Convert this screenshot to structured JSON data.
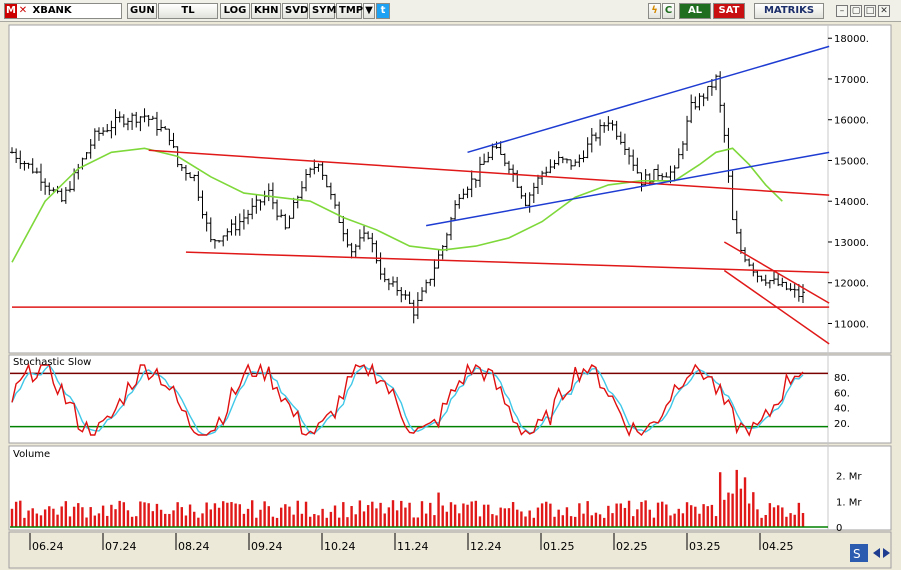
{
  "toolbar": {
    "symbol": "XBANK",
    "period": "GUN",
    "currency": "TL",
    "buttons": [
      "LOG",
      "KHN",
      "SVD",
      "SYM",
      "TMP"
    ],
    "buy_label": "AL",
    "sell_label": "SAT",
    "brand": "MATRIKS",
    "colors": {
      "buy": "#1f6e1f",
      "sell": "#c81010",
      "brand": "#1c2f6b"
    },
    "icons": [
      "lightning-icon",
      "refresh-icon",
      "twitter-icon",
      "dropdown-arrow-icon"
    ]
  },
  "stochastic": {
    "title": "Stochastic Slow",
    "ticks": [
      20,
      40,
      60,
      80
    ],
    "tick_labels": [
      "20.",
      "40.",
      "60.",
      "80."
    ],
    "overbought": 85,
    "oversold": 15,
    "colors": {
      "k": "#e01010",
      "d": "#40c8e8",
      "overbought": "#7a0000",
      "oversold": "#008000"
    }
  },
  "volume": {
    "title": "Volume",
    "tick_labels": [
      "0",
      "1. Mr",
      "2. Mr"
    ],
    "ticks": [
      0,
      1,
      2
    ],
    "color": "#e01818",
    "unit": "Mr"
  },
  "chart_data": {
    "type": "line",
    "price_axis": {
      "min": 10300,
      "max": 18300,
      "ticks": [
        11000,
        12000,
        13000,
        14000,
        15000,
        16000,
        17000,
        18000
      ],
      "tick_labels": [
        "11000.",
        "12000.",
        "13000.",
        "14000.",
        "15000.",
        "16000.",
        "17000.",
        "18000."
      ]
    },
    "x_tick_labels": [
      "06.24",
      "07.24",
      "08.24",
      "09.24",
      "10.24",
      "11.24",
      "12.24",
      "01.25",
      "02.25",
      "03.25",
      "04.25"
    ],
    "price_path": [
      [
        0,
        15200
      ],
      [
        6,
        14700
      ],
      [
        12,
        14000
      ],
      [
        20,
        15600
      ],
      [
        26,
        16000
      ],
      [
        32,
        16100
      ],
      [
        38,
        15600
      ],
      [
        40,
        14900
      ],
      [
        44,
        14600
      ],
      [
        48,
        13000
      ],
      [
        54,
        13400
      ],
      [
        58,
        13800
      ],
      [
        62,
        14200
      ],
      [
        66,
        13300
      ],
      [
        70,
        14400
      ],
      [
        74,
        15000
      ],
      [
        78,
        13800
      ],
      [
        82,
        12800
      ],
      [
        86,
        13200
      ],
      [
        90,
        12000
      ],
      [
        94,
        11800
      ],
      [
        97,
        11300
      ],
      [
        100,
        11900
      ],
      [
        104,
        12900
      ],
      [
        108,
        14200
      ],
      [
        112,
        14600
      ],
      [
        116,
        15300
      ],
      [
        120,
        14900
      ],
      [
        124,
        14000
      ],
      [
        128,
        14700
      ],
      [
        132,
        15000
      ],
      [
        136,
        14900
      ],
      [
        140,
        15500
      ],
      [
        144,
        16000
      ],
      [
        148,
        15400
      ],
      [
        152,
        14500
      ],
      [
        156,
        14700
      ],
      [
        160,
        14700
      ],
      [
        164,
        16300
      ],
      [
        168,
        16700
      ],
      [
        170,
        17000
      ],
      [
        172,
        15600
      ],
      [
        174,
        13500
      ],
      [
        176,
        12800
      ],
      [
        180,
        12200
      ],
      [
        184,
        12000
      ],
      [
        188,
        11800
      ],
      [
        190,
        11700
      ]
    ],
    "ma_path": [
      [
        0,
        12500
      ],
      [
        8,
        14000
      ],
      [
        16,
        14800
      ],
      [
        24,
        15200
      ],
      [
        32,
        15300
      ],
      [
        40,
        15100
      ],
      [
        48,
        14600
      ],
      [
        56,
        14200
      ],
      [
        64,
        14100
      ],
      [
        72,
        14000
      ],
      [
        80,
        13600
      ],
      [
        88,
        13300
      ],
      [
        96,
        12900
      ],
      [
        104,
        12800
      ],
      [
        112,
        12900
      ],
      [
        120,
        13100
      ],
      [
        128,
        13500
      ],
      [
        136,
        14100
      ],
      [
        144,
        14400
      ],
      [
        152,
        14500
      ],
      [
        160,
        14500
      ],
      [
        166,
        14900
      ],
      [
        170,
        15200
      ],
      [
        174,
        15300
      ],
      [
        178,
        14900
      ],
      [
        182,
        14400
      ],
      [
        186,
        14000
      ]
    ],
    "trendlines": [
      {
        "color": "#e01818",
        "from": [
          33,
          15250
        ],
        "to": [
          192,
          14150
        ]
      },
      {
        "color": "#e01818",
        "from": [
          42,
          12750
        ],
        "to": [
          192,
          12250
        ]
      },
      {
        "color": "#e01818",
        "from": [
          0,
          11400
        ],
        "to": [
          192,
          11400
        ]
      },
      {
        "color": "#e01818",
        "from": [
          172,
          13000
        ],
        "to": [
          192,
          11500
        ]
      },
      {
        "color": "#e01818",
        "from": [
          172,
          12300
        ],
        "to": [
          192,
          10500
        ]
      },
      {
        "color": "#1e3cd2",
        "from": [
          100,
          13400
        ],
        "to": [
          192,
          15200
        ]
      },
      {
        "color": "#1e3cd2",
        "from": [
          110,
          15200
        ],
        "to": [
          192,
          17800
        ]
      }
    ],
    "ma_color": "#7ed83a",
    "bar_color": "#000000",
    "n_bars": 192
  }
}
